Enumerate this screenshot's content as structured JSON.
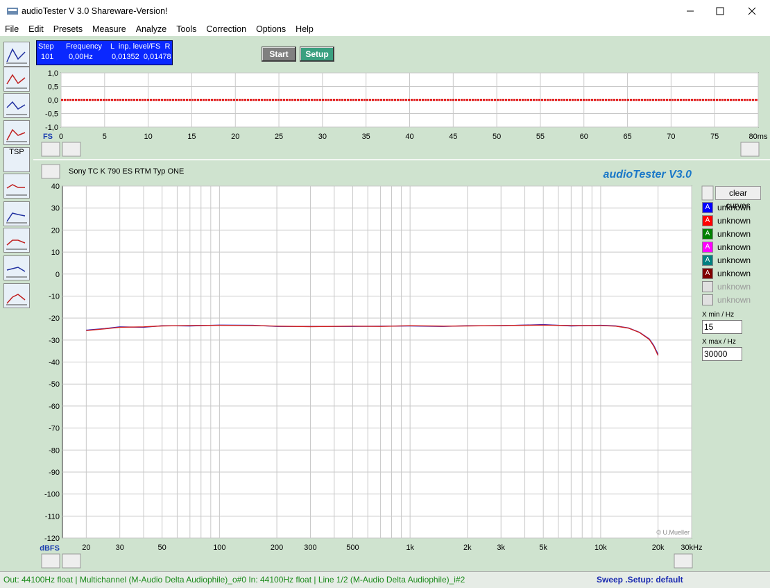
{
  "window": {
    "title": "audioTester  V 3.0 Shareware-Version!"
  },
  "menu": [
    "File",
    "Edit",
    "Presets",
    "Measure",
    "Analyze",
    "Tools",
    "Correction",
    "Options",
    "Help"
  ],
  "toolbar": {
    "tsp_label": "TSP"
  },
  "status_box": {
    "headers": [
      "Step",
      "Frequency",
      "L  inp. level/FS  R"
    ],
    "values": [
      "101",
      "0,00Hz",
      "0,01352  0,01478"
    ]
  },
  "buttons": [
    "Start",
    "Setup"
  ],
  "time_chart": {
    "type": "line",
    "y_unit": "FS",
    "xlim": [
      0,
      80
    ],
    "ylim": [
      -1,
      1
    ],
    "xticks": [
      0,
      5,
      10,
      15,
      20,
      25,
      30,
      35,
      40,
      45,
      50,
      55,
      60,
      65,
      70,
      75,
      {
        "value": 80,
        "label": "80ms"
      }
    ],
    "yticks": [
      {
        "value": 1,
        "label": "1,0"
      },
      {
        "value": 0.5,
        "label": "0,5"
      },
      {
        "value": 0,
        "label": "0,0"
      },
      {
        "value": -0.5,
        "label": "-0,5"
      },
      {
        "value": -1,
        "label": "-1,0"
      }
    ],
    "grid": true,
    "series": [
      {
        "color": "#e00000",
        "x": [
          0,
          10,
          20,
          30,
          40,
          50,
          60,
          70,
          80
        ],
        "values": [
          0,
          0,
          0,
          0,
          0,
          0,
          0,
          0,
          0
        ]
      }
    ]
  },
  "freq_chart": {
    "type": "line",
    "title": "Sony TC K 790 ES RTM Typ ONE",
    "brand": "audioTester  V3.0",
    "copyright": "© U.Mueller",
    "y_unit": "dBFS",
    "xscale": "log",
    "xlim": [
      15,
      30000
    ],
    "ylim": [
      -120,
      40
    ],
    "xticks": [
      20,
      30,
      50,
      100,
      200,
      300,
      500,
      {
        "value": 1000,
        "label": "1k"
      },
      {
        "value": 2000,
        "label": "2k"
      },
      {
        "value": 3000,
        "label": "3k"
      },
      {
        "value": 5000,
        "label": "5k"
      },
      {
        "value": 10000,
        "label": "10k"
      },
      {
        "value": 20000,
        "label": "20k"
      },
      {
        "value": 30000,
        "label": "30kHz"
      }
    ],
    "minor_xticks": [
      40,
      60,
      70,
      80,
      90,
      400,
      600,
      700,
      800,
      900,
      4000,
      6000,
      7000,
      8000,
      9000
    ],
    "yticks": [
      40,
      30,
      20,
      10,
      0,
      -10,
      -20,
      -30,
      -40,
      -50,
      -60,
      -70,
      -80,
      -90,
      -100,
      -110,
      -120
    ],
    "grid": true,
    "series": [
      {
        "color": "#2020d0",
        "x": [
          20,
          25,
          30,
          40,
          50,
          70,
          100,
          150,
          200,
          300,
          500,
          700,
          1000,
          1500,
          2000,
          3000,
          5000,
          7000,
          10000,
          12000,
          14000,
          16000,
          18000,
          19000,
          20000
        ],
        "values": [
          -25.5,
          -24.8,
          -24,
          -24.2,
          -23.5,
          -23.6,
          -23.2,
          -23.3,
          -23.8,
          -23.8,
          -23.8,
          -23.7,
          -23.6,
          -23.8,
          -23.5,
          -23.5,
          -23,
          -23.6,
          -23.3,
          -23.6,
          -24.5,
          -26.5,
          -29.5,
          -32.5,
          -36.5
        ]
      },
      {
        "color": "#d02020",
        "x": [
          20,
          25,
          30,
          40,
          50,
          70,
          100,
          150,
          200,
          300,
          500,
          700,
          1000,
          1500,
          2000,
          3000,
          5000,
          7000,
          10000,
          12000,
          14000,
          16000,
          18000,
          19000,
          20000
        ],
        "values": [
          -25.7,
          -24.9,
          -24.2,
          -24,
          -23.6,
          -23.4,
          -23.3,
          -23.4,
          -23.7,
          -23.9,
          -23.7,
          -23.8,
          -23.5,
          -23.7,
          -23.6,
          -23.4,
          -23.2,
          -23.4,
          -23.4,
          -23.7,
          -24.6,
          -26.6,
          -29.7,
          -32.8,
          -37
        ]
      }
    ]
  },
  "legend": {
    "clear_button": "clear curves",
    "entries": [
      {
        "icon": "A",
        "label": "unknown",
        "color": "#0000ff",
        "enabled": true
      },
      {
        "icon": "A",
        "label": "unknown",
        "color": "#ff0000",
        "enabled": true
      },
      {
        "icon": "A",
        "label": "unknown",
        "color": "#008000",
        "enabled": true
      },
      {
        "icon": "A",
        "label": "unknown",
        "color": "#ff00ff",
        "enabled": true
      },
      {
        "icon": "A",
        "label": "unknown",
        "color": "#008080",
        "enabled": true
      },
      {
        "icon": "A",
        "label": "unknown",
        "color": "#800000",
        "enabled": true
      },
      {
        "label": "unknown",
        "color": "#e0e0e0",
        "enabled": false
      },
      {
        "label": "unknown",
        "color": "#e0e0e0",
        "enabled": false
      }
    ]
  },
  "range_inputs": {
    "xmin_label": "X min / Hz",
    "xmin": "15",
    "xmax_label": "X max / Hz",
    "xmax": "30000"
  },
  "status_bar": {
    "left": "Out: 44100Hz float  | Multichannel (M-Audio Delta Audiophile)_o#0   In: 44100Hz float  | Line 1/2 (M-Audio Delta Audiophile)_i#2",
    "right": "Sweep  .Setup:  default"
  }
}
